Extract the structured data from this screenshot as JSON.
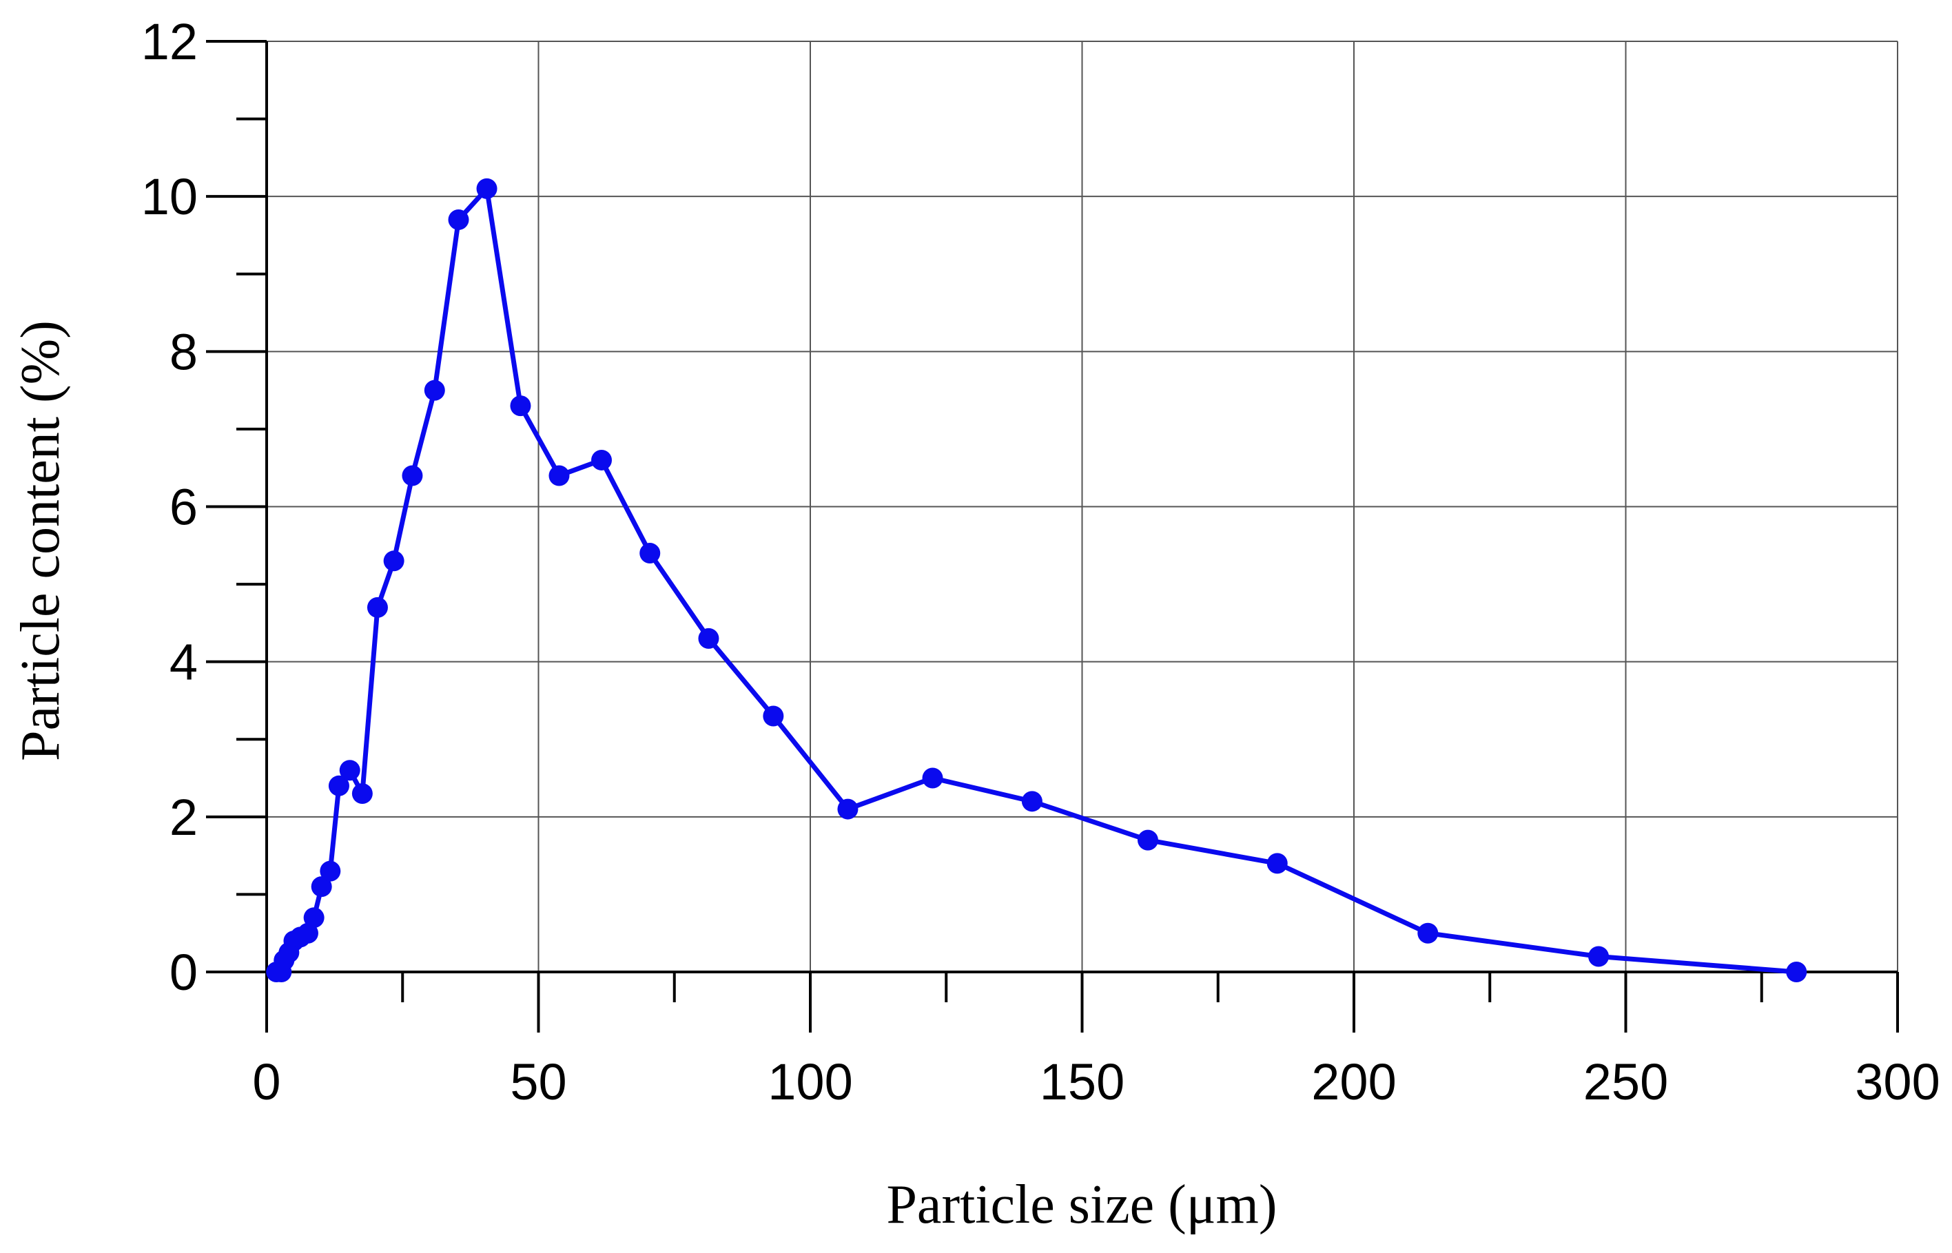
{
  "chart_data": {
    "type": "line",
    "x_label": "Particle size (μm)",
    "y_label": "Particle content (%)",
    "x": [
      1.8,
      2.7,
      3.2,
      4.1,
      5.0,
      6.2,
      7.6,
      8.7,
      10.1,
      11.7,
      13.3,
      15.3,
      17.6,
      20.4,
      23.4,
      26.8,
      30.9,
      35.3,
      40.5,
      46.7,
      53.8,
      61.6,
      70.5,
      81.3,
      93.2,
      106.9,
      122.5,
      140.8,
      162.1,
      185.9,
      213.6,
      245.0,
      281.4
    ],
    "series": [
      {
        "name": "Particle content",
        "color": "#0a0aee",
        "values": [
          0,
          0,
          0.15,
          0.25,
          0.4,
          0.45,
          0.5,
          0.7,
          1.1,
          1.3,
          2.4,
          2.6,
          2.3,
          4.7,
          5.3,
          6.4,
          7.5,
          9.7,
          10.1,
          7.3,
          6.4,
          6.6,
          5.4,
          4.3,
          3.3,
          2.1,
          2.5,
          2.2,
          1.7,
          1.4,
          0.5,
          0.2,
          0
        ]
      }
    ],
    "xlim": [
      0,
      300
    ],
    "xticks": [
      0,
      50,
      100,
      150,
      200,
      250,
      300
    ],
    "xminorticks": [
      25,
      75,
      125,
      175,
      225,
      275
    ],
    "ylim": [
      0,
      12
    ],
    "yticks": [
      0,
      2,
      4,
      6,
      8,
      10,
      12
    ],
    "yminorticks": [
      1,
      3,
      5,
      7,
      9,
      11
    ],
    "grid": true,
    "markers": true
  }
}
